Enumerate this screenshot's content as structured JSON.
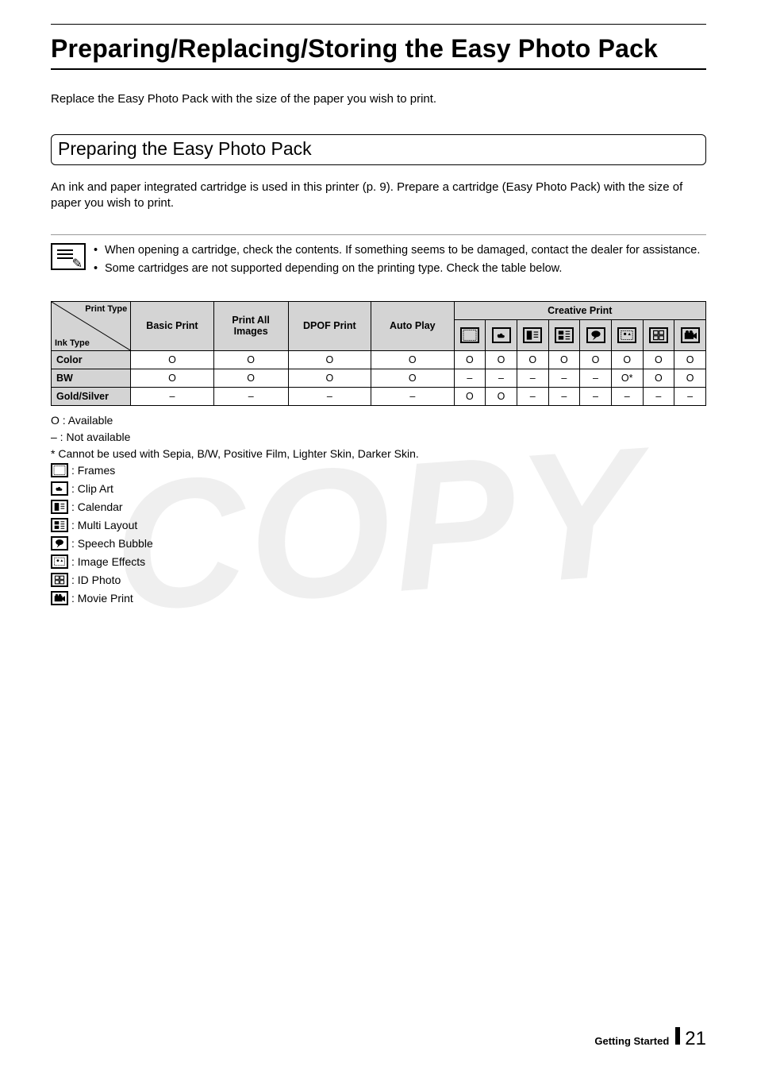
{
  "page": {
    "title": "Preparing/Replacing/Storing the Easy Photo Pack",
    "intro": "Replace the Easy Photo Pack with the size of the paper you wish to print.",
    "section_heading": "Preparing the Easy Photo Pack",
    "section_desc": "An ink and paper integrated cartridge is used in this printer (p. 9). Prepare a cartridge (Easy Photo Pack) with the size of paper you wish to print.",
    "notes": [
      "When opening a cartridge, check the contents. If something seems to be damaged, contact the dealer for assistance.",
      "Some cartridges are not supported depending on the printing type. Check the table below."
    ],
    "watermark": "COPY"
  },
  "table": {
    "diag_top": "Print Type",
    "diag_bot": "Ink Type",
    "main_cols": [
      "Basic Print",
      "Print All Images",
      "DPOF Print",
      "Auto Play"
    ],
    "creative_header": "Creative Print",
    "creative_icons": [
      "frames",
      "clipart",
      "calendar",
      "multilayout",
      "speech",
      "effects",
      "idphoto",
      "movie"
    ],
    "rows": [
      {
        "label": "Color",
        "main": [
          "O",
          "O",
          "O",
          "O"
        ],
        "cp": [
          "O",
          "O",
          "O",
          "O",
          "O",
          "O",
          "O",
          "O"
        ]
      },
      {
        "label": "BW",
        "main": [
          "O",
          "O",
          "O",
          "O"
        ],
        "cp": [
          "–",
          "–",
          "–",
          "–",
          "–",
          "O*",
          "O",
          "O"
        ]
      },
      {
        "label": "Gold/Silver",
        "main": [
          "–",
          "–",
          "–",
          "–"
        ],
        "cp": [
          "O",
          "O",
          "–",
          "–",
          "–",
          "–",
          "–",
          "–"
        ]
      }
    ]
  },
  "legend": {
    "avail": "O : Available",
    "notavail": "–  : Not available",
    "asterisk": "*  Cannot be used with Sepia, B/W, Positive Film, Lighter Skin, Darker Skin.",
    "icons": [
      {
        "id": "frames",
        "label": ": Frames"
      },
      {
        "id": "clipart",
        "label": ": Clip Art"
      },
      {
        "id": "calendar",
        "label": ": Calendar"
      },
      {
        "id": "multilayout",
        "label": ": Multi Layout"
      },
      {
        "id": "speech",
        "label": ": Speech Bubble"
      },
      {
        "id": "effects",
        "label": ": Image Effects"
      },
      {
        "id": "idphoto",
        "label": ": ID Photo"
      },
      {
        "id": "movie",
        "label": ": Movie Print"
      }
    ]
  },
  "footer": {
    "section": "Getting Started",
    "page_no": "21"
  },
  "colors": {
    "header_bg": "#d4d4d4",
    "border": "#000000",
    "text": "#000000",
    "watermark": "#000000"
  }
}
